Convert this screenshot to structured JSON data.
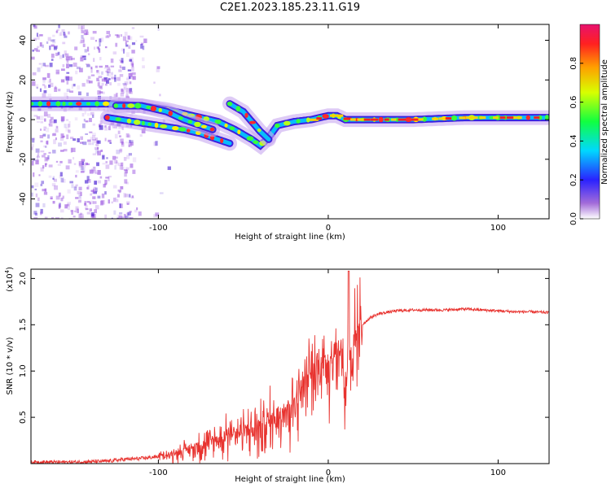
{
  "figure_title": "C2E1.2023.185.23.11.G19",
  "colors": {
    "snr_line": "#e8332f",
    "axes": "#000000",
    "colorbar": [
      "#7b1fa2",
      "#3f51ff",
      "#00e5ff",
      "#2cff2c",
      "#ffff00",
      "#ff9800",
      "#ff1744",
      "#e91e63"
    ]
  },
  "chart_data": [
    {
      "type": "heatmap",
      "title": "C2E1.2023.185.23.11.G19",
      "xlabel": "Height of straight line (km)",
      "ylabel": "Frequency (Hz)",
      "xlim": [
        -175,
        130
      ],
      "ylim": [
        -50,
        48
      ],
      "xticks": [
        -100,
        0,
        100
      ],
      "yticks": [
        -40,
        -20,
        0,
        20,
        40
      ],
      "colorbar": {
        "label": "Normalized spectral amplitude",
        "range": [
          0,
          1
        ],
        "ticks": [
          0.0,
          0.2,
          0.4,
          0.6,
          0.8
        ]
      },
      "tracks": [
        {
          "name": "main",
          "points": [
            [
              -175,
              8
            ],
            [
              -150,
              8
            ],
            [
              -130,
              8
            ],
            [
              -110,
              7
            ],
            [
              -95,
              5
            ],
            [
              -85,
              3
            ],
            [
              -75,
              1
            ],
            [
              -65,
              -1
            ],
            [
              -55,
              -5
            ],
            [
              -45,
              -10
            ],
            [
              -40,
              -13
            ],
            [
              -35,
              -9
            ],
            [
              -30,
              -3
            ],
            [
              -20,
              -1
            ],
            [
              -10,
              0
            ],
            [
              0,
              2
            ],
            [
              5,
              2
            ],
            [
              10,
              0
            ],
            [
              20,
              0
            ],
            [
              50,
              0
            ],
            [
              80,
              1
            ],
            [
              100,
              1
            ],
            [
              130,
              1
            ]
          ]
        },
        {
          "name": "branch_lower",
          "points": [
            [
              -130,
              1
            ],
            [
              -115,
              -1
            ],
            [
              -100,
              -3
            ],
            [
              -85,
              -5
            ],
            [
              -75,
              -7
            ],
            [
              -65,
              -10
            ],
            [
              -58,
              -12
            ]
          ]
        },
        {
          "name": "branch_upper",
          "points": [
            [
              -125,
              7
            ],
            [
              -110,
              7
            ],
            [
              -95,
              4
            ],
            [
              -85,
              0
            ],
            [
              -75,
              -3
            ],
            [
              -68,
              -5
            ]
          ]
        },
        {
          "name": "branch_right",
          "points": [
            [
              -58,
              8
            ],
            [
              -50,
              4
            ],
            [
              -45,
              -1
            ],
            [
              -40,
              -6
            ],
            [
              -35,
              -10
            ]
          ]
        }
      ]
    },
    {
      "type": "line",
      "xlabel": "Height of straight line (km)",
      "ylabel": "SNR (10 * v/v)",
      "yscale_label": "(x10",
      "yscale_exp": "4",
      "xlim": [
        -175,
        130
      ],
      "ylim": [
        0,
        2.1
      ],
      "xticks": [
        -100,
        0,
        100
      ],
      "yticks": [
        0.5,
        1.0,
        1.5,
        2.0
      ],
      "series": [
        {
          "x": [
            -175,
            -150,
            -130,
            -120,
            -110,
            -100,
            -90,
            -80,
            -70,
            -60,
            -50,
            -40,
            -30,
            -20,
            -15,
            -10,
            -5,
            0,
            5,
            8,
            10,
            12,
            14,
            16,
            20,
            25,
            30,
            40,
            50,
            60,
            70,
            80,
            90,
            100,
            110,
            120,
            130
          ],
          "y": [
            0.02,
            0.02,
            0.03,
            0.05,
            0.06,
            0.08,
            0.12,
            0.18,
            0.25,
            0.32,
            0.38,
            0.42,
            0.55,
            0.7,
            0.85,
            1.0,
            1.1,
            1.15,
            1.2,
            1.25,
            0.75,
            1.45,
            0.8,
            1.45,
            1.5,
            1.58,
            1.62,
            1.65,
            1.66,
            1.66,
            1.66,
            1.67,
            1.66,
            1.65,
            1.64,
            1.64,
            1.63
          ]
        }
      ]
    }
  ]
}
